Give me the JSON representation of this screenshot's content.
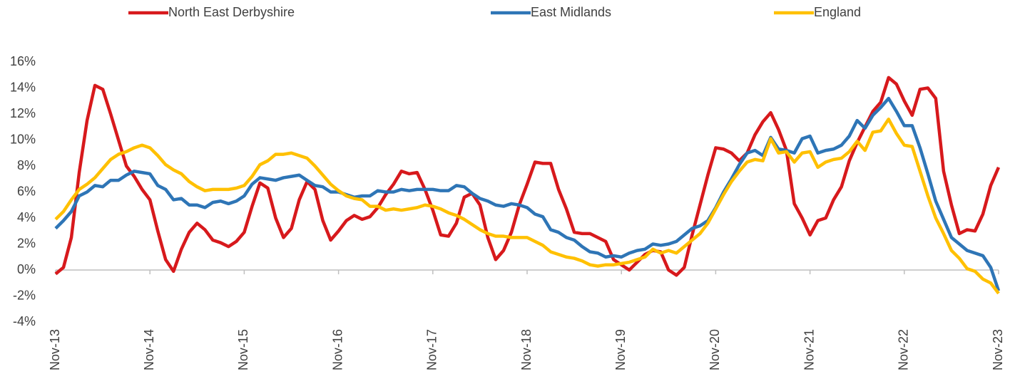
{
  "chart_data": {
    "type": "line",
    "legend": "top",
    "categories": [
      "Nov-13",
      null,
      null,
      null,
      null,
      null,
      null,
      null,
      null,
      null,
      null,
      null,
      "Nov-14",
      null,
      null,
      null,
      null,
      null,
      null,
      null,
      null,
      null,
      null,
      null,
      "Nov-15",
      null,
      null,
      null,
      null,
      null,
      null,
      null,
      null,
      null,
      null,
      null,
      "Nov-16",
      null,
      null,
      null,
      null,
      null,
      null,
      null,
      null,
      null,
      null,
      null,
      "Nov-17",
      null,
      null,
      null,
      null,
      null,
      null,
      null,
      null,
      null,
      null,
      null,
      "Nov-18",
      null,
      null,
      null,
      null,
      null,
      null,
      null,
      null,
      null,
      null,
      null,
      "Nov-19",
      null,
      null,
      null,
      null,
      null,
      null,
      null,
      null,
      null,
      null,
      null,
      "Nov-20",
      null,
      null,
      null,
      null,
      null,
      null,
      null,
      null,
      null,
      null,
      null,
      "Nov-21",
      null,
      null,
      null,
      null,
      null,
      null,
      null,
      null,
      null,
      null,
      null,
      "Nov-22",
      null,
      null,
      null,
      null,
      null,
      null,
      null,
      null,
      null,
      null,
      null,
      "Nov-23"
    ],
    "series": [
      {
        "name": "North East Derbyshire",
        "color": "#d7191c",
        "values": [
          -0.3,
          0.2,
          2.5,
          7.5,
          11.5,
          14.2,
          13.9,
          12.0,
          10.0,
          8.0,
          7.2,
          6.2,
          5.4,
          3.0,
          0.8,
          -0.1,
          1.6,
          2.9,
          3.6,
          3.1,
          2.3,
          2.1,
          1.8,
          2.2,
          2.9,
          4.9,
          6.7,
          6.3,
          4.0,
          2.5,
          3.2,
          5.4,
          6.8,
          6.2,
          3.8,
          2.3,
          3.0,
          3.8,
          4.2,
          3.9,
          4.1,
          4.8,
          5.8,
          6.6,
          7.6,
          7.4,
          7.5,
          6.2,
          4.6,
          2.7,
          2.6,
          3.6,
          5.6,
          5.9,
          5.0,
          2.5,
          0.8,
          1.5,
          2.9,
          5.0,
          6.6,
          8.3,
          8.2,
          8.2,
          6.2,
          4.7,
          2.9,
          2.8,
          2.8,
          2.5,
          2.2,
          0.8,
          0.4,
          0,
          0.6,
          1.2,
          1.5,
          1.4,
          0,
          -0.4,
          0.2,
          2.7,
          5.0,
          7.3,
          9.4,
          9.3,
          9.0,
          8.4,
          9.0,
          10.4,
          11.4,
          12.1,
          10.8,
          9.2,
          5.1,
          4.0,
          2.7,
          3.8,
          4.0,
          5.4,
          6.4,
          8.4,
          9.8,
          11.0,
          12.2,
          12.9,
          14.8,
          14.3,
          13.0,
          11.9,
          13.9,
          14.0,
          13.2,
          7.6,
          5.0,
          2.8,
          3.1,
          3.0,
          4.3,
          6.5,
          7.9
        ]
      },
      {
        "name": "East Midlands",
        "color": "#2e75b6",
        "values": [
          3.2,
          3.8,
          4.5,
          5.7,
          6.0,
          6.5,
          6.4,
          6.9,
          6.9,
          7.3,
          7.6,
          7.5,
          7.4,
          6.5,
          6.2,
          5.4,
          5.5,
          5.0,
          5.0,
          4.8,
          5.2,
          5.3,
          5.1,
          5.3,
          5.7,
          6.6,
          7.1,
          7.0,
          6.9,
          7.1,
          7.2,
          7.3,
          6.9,
          6.5,
          6.4,
          6.0,
          6.0,
          5.8,
          5.6,
          5.7,
          5.7,
          6.1,
          6.0,
          6.0,
          6.2,
          6.1,
          6.2,
          6.2,
          6.2,
          6.1,
          6.1,
          6.5,
          6.4,
          5.9,
          5.5,
          5.3,
          5.0,
          4.9,
          5.1,
          5.0,
          4.8,
          4.3,
          4.1,
          3.1,
          2.9,
          2.5,
          2.3,
          1.8,
          1.4,
          1.3,
          1.0,
          1.1,
          1.0,
          1.3,
          1.5,
          1.6,
          2.0,
          1.9,
          2.0,
          2.2,
          2.7,
          3.2,
          3.4,
          3.8,
          4.8,
          6.0,
          7.0,
          8.1,
          9.0,
          9.2,
          8.8,
          10.2,
          9.3,
          9.2,
          9.0,
          10.1,
          10.3,
          9.0,
          9.2,
          9.3,
          9.6,
          10.3,
          11.5,
          10.9,
          11.9,
          12.5,
          13.2,
          12.2,
          11.1,
          11.1,
          9.4,
          7.4,
          5.3,
          3.9,
          2.5,
          2.0,
          1.5,
          1.3,
          1.1,
          0.2,
          -1.6
        ]
      },
      {
        "name": "England",
        "color": "#ffc000",
        "values": [
          3.9,
          4.5,
          5.4,
          6.2,
          6.6,
          7.1,
          7.8,
          8.5,
          8.9,
          9.1,
          9.4,
          9.6,
          9.4,
          8.8,
          8.1,
          7.7,
          7.4,
          6.8,
          6.4,
          6.1,
          6.2,
          6.2,
          6.2,
          6.3,
          6.5,
          7.2,
          8.1,
          8.4,
          8.9,
          8.9,
          9.0,
          8.8,
          8.6,
          8.0,
          7.3,
          6.6,
          6.1,
          5.7,
          5.5,
          5.4,
          4.9,
          4.9,
          4.6,
          4.7,
          4.6,
          4.7,
          4.8,
          5.0,
          4.9,
          4.7,
          4.4,
          4.2,
          3.9,
          3.5,
          3.1,
          2.8,
          2.6,
          2.6,
          2.5,
          2.5,
          2.5,
          2.2,
          1.9,
          1.4,
          1.2,
          1.0,
          0.9,
          0.7,
          0.4,
          0.3,
          0.4,
          0.4,
          0.5,
          0.6,
          0.8,
          1.0,
          1.6,
          1.3,
          1.5,
          1.3,
          1.8,
          2.3,
          2.8,
          3.6,
          4.7,
          5.8,
          6.8,
          7.6,
          8.3,
          8.5,
          8.4,
          10.1,
          9.0,
          9.1,
          8.3,
          9.0,
          9.1,
          7.9,
          8.3,
          8.5,
          8.6,
          9.1,
          9.9,
          9.2,
          10.6,
          10.7,
          11.6,
          10.5,
          9.6,
          9.5,
          7.6,
          5.7,
          4.0,
          2.8,
          1.5,
          0.9,
          0.1,
          -0.1,
          -0.7,
          -1.0,
          -1.8
        ]
      }
    ],
    "ylim": [
      -4,
      16
    ],
    "yticks": [
      {
        "value": -4,
        "label": "-4%"
      },
      {
        "value": -2,
        "label": "-2%"
      },
      {
        "value": 0,
        "label": "0%"
      },
      {
        "value": 2,
        "label": "2%"
      },
      {
        "value": 4,
        "label": "4%"
      },
      {
        "value": 6,
        "label": "6%"
      },
      {
        "value": 8,
        "label": "8%"
      },
      {
        "value": 10,
        "label": "10%"
      },
      {
        "value": 12,
        "label": "12%"
      },
      {
        "value": 14,
        "label": "14%"
      },
      {
        "value": 16,
        "label": "16%"
      }
    ],
    "grid": false
  }
}
